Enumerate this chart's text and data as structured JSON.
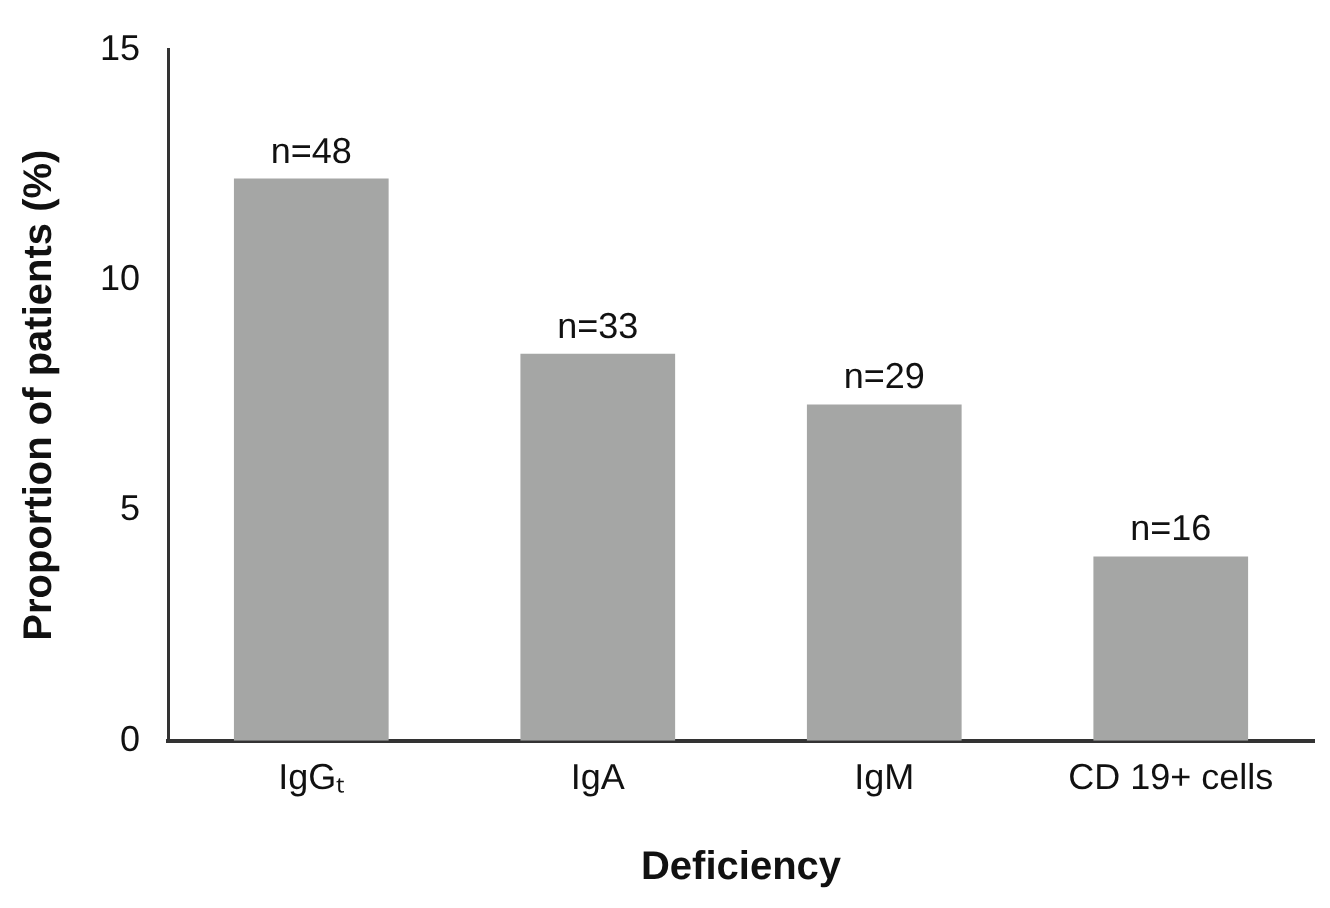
{
  "chart_data": {
    "type": "bar",
    "xlabel": "Deficiency",
    "ylabel": "Proportion of patients (%)",
    "categories": [
      "IgGₜ",
      "IgA",
      "IgM",
      "CD 19+ cells"
    ],
    "values": [
      12.2,
      8.4,
      7.3,
      4.0
    ],
    "color": "#a5a6a5",
    "annotations": [
      {
        "text": "n=48",
        "x": "IgGₜ",
        "y": 12.2
      },
      {
        "text": "n=33",
        "x": "IgA",
        "y": 8.4
      },
      {
        "text": "n=29",
        "x": "IgM",
        "y": 7.3
      },
      {
        "text": "n=16",
        "x": "CD 19+ cells",
        "y": 4.0
      }
    ],
    "ylim": [
      0,
      15
    ],
    "yticks": [
      0,
      5,
      10,
      15
    ],
    "grid": false,
    "legend": false
  }
}
